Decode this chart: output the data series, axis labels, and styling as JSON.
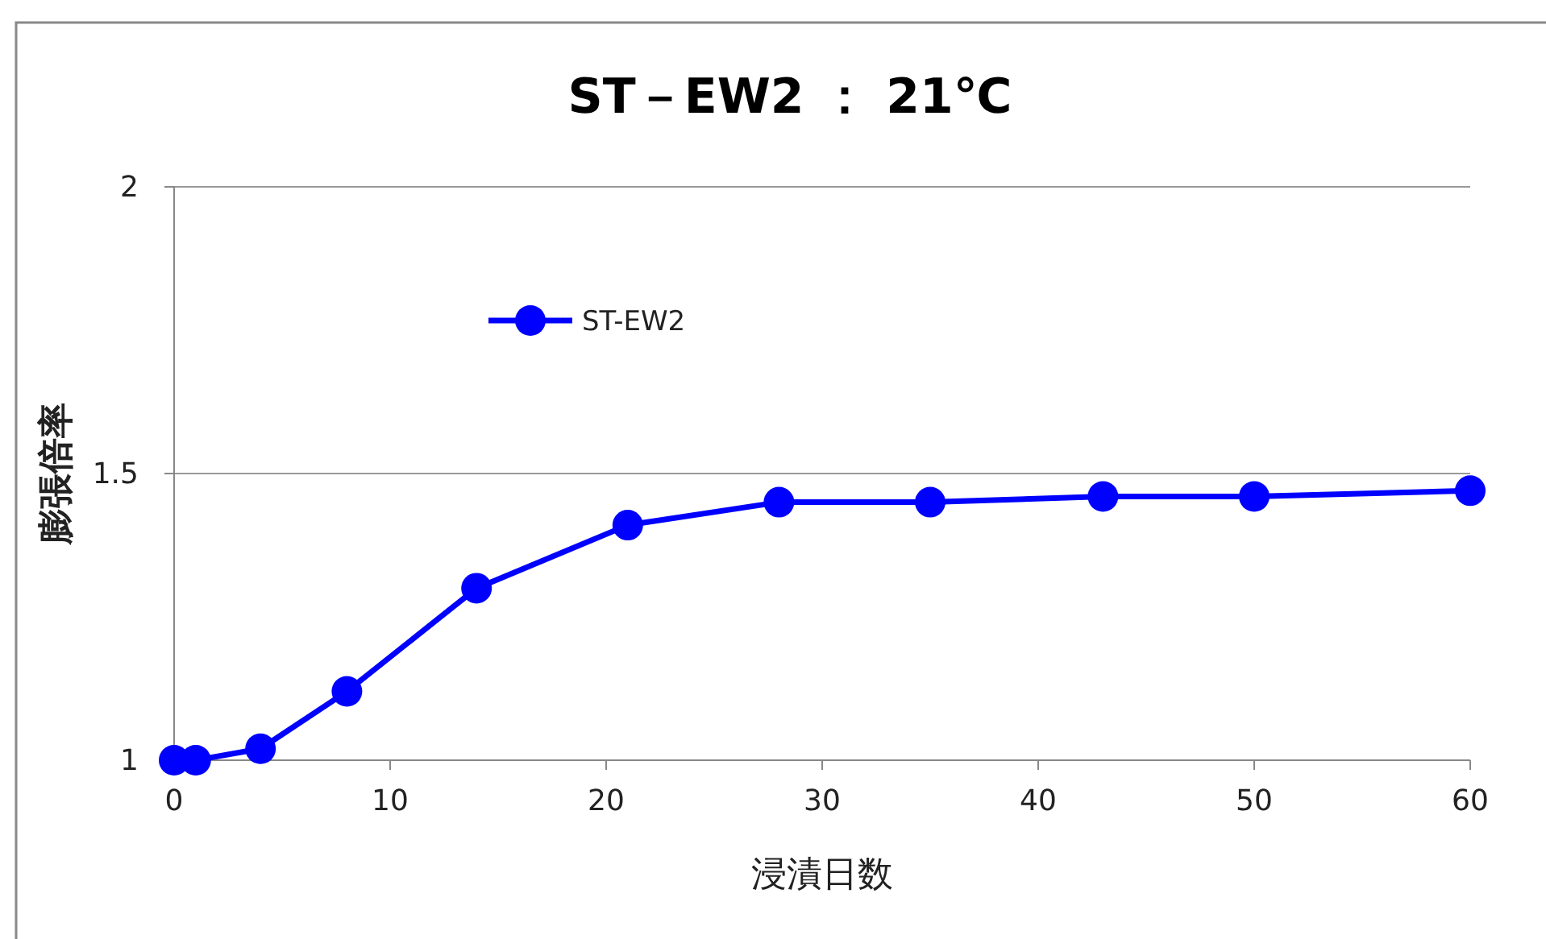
{
  "chart_data": {
    "type": "line",
    "title": "ST－EW2 ： 21℃",
    "xlabel": "浸漬日数",
    "ylabel": "膨張倍率",
    "x": [
      0,
      1,
      4,
      8,
      14,
      21,
      28,
      35,
      43,
      50,
      60
    ],
    "series": [
      {
        "name": "ST-EW2",
        "color": "#0000ff",
        "values": [
          1.0,
          1.0,
          1.02,
          1.12,
          1.3,
          1.41,
          1.45,
          1.45,
          1.46,
          1.46,
          1.47
        ]
      }
    ],
    "xlim": [
      0,
      60
    ],
    "ylim": [
      1,
      2
    ],
    "xticks": [
      0,
      10,
      20,
      30,
      40,
      50,
      60
    ],
    "yticks": [
      1,
      1.5,
      2
    ],
    "grid": "y",
    "legend": "top left",
    "marker": "circle",
    "line_style": "solid"
  }
}
